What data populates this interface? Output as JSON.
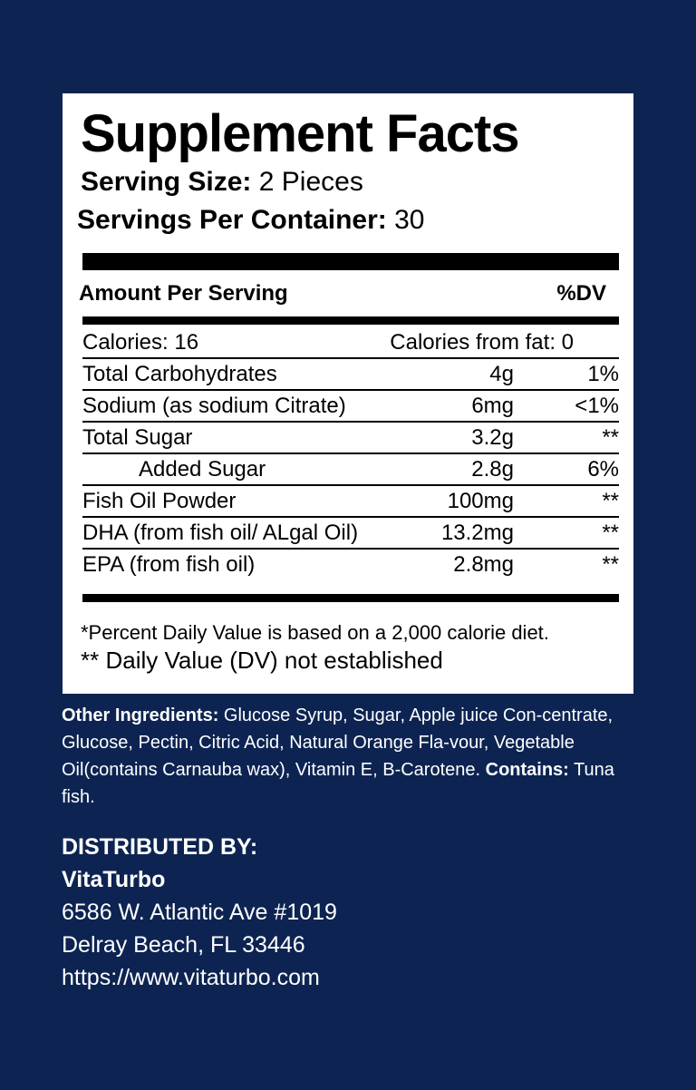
{
  "panel": {
    "title": "Supplement Facts",
    "serving_size_label": "Serving Size:",
    "serving_size_value": "2 Pieces",
    "servings_per_container_label": "Servings Per Container:",
    "servings_per_container_value": "30",
    "amount_header": "Amount Per Serving",
    "dv_header": "%DV",
    "calories": "Calories: 16",
    "calories_from_fat": "Calories from fat: 0",
    "rows": [
      {
        "name": "Total Carbohydrates",
        "amount": "4g",
        "dv": "1%"
      },
      {
        "name": "Sodium (as sodium Citrate)",
        "amount": "6mg",
        "dv": "<1%"
      },
      {
        "name": "Total Sugar",
        "amount": "3.2g",
        "dv": "**"
      },
      {
        "name": "Added Sugar",
        "amount": "2.8g",
        "dv": "6%"
      },
      {
        "name": "Fish Oil Powder",
        "amount": "100mg",
        "dv": "**"
      },
      {
        "name": "DHA (from fish oil/ ALgal Oil)",
        "amount": "13.2mg",
        "dv": "**"
      },
      {
        "name": "EPA (from fish oil)",
        "amount": "2.8mg",
        "dv": "**"
      }
    ],
    "footnote_1": "*Percent Daily Value is based on a 2,000 calorie diet.",
    "footnote_2": "** Daily Value (DV) not established"
  },
  "ingredients": {
    "label": "Other Ingredients:",
    "text": "Glucose Syrup, Sugar, Apple juice Con-centrate, Glucose, Pectin, Citric Acid, Natural Orange Fla-vour, Vegetable Oil(contains Carnauba wax), Vitamin E, B-Carotene.",
    "contains_label": "Contains:",
    "contains_text": "Tuna fish."
  },
  "distributor": {
    "heading": "DISTRIBUTED BY:",
    "company": "VitaTurbo",
    "address_1": "6586 W. Atlantic Ave #1019",
    "address_2": "Delray Beach, FL 33446",
    "website": "https://www.vitaturbo.com"
  },
  "colors": {
    "background": "#0d2452",
    "panel": "#ffffff",
    "text_on_background": "#ffffff"
  }
}
